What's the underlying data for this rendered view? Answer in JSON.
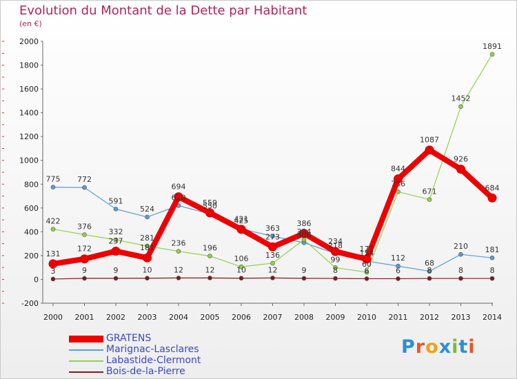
{
  "title": "Evolution du Montant de la Dette par Habitant",
  "subtitle": "(en €)",
  "logo": {
    "text": "Proxiti",
    "colors": [
      "#2b8fd6",
      "#e8552a",
      "#f0a21c",
      "#2b8fd6",
      "#7cbb2f",
      "#2b8fd6",
      "#e8552a"
    ]
  },
  "chart_data": {
    "type": "line",
    "x": [
      "2000",
      "2001",
      "2002",
      "2003",
      "2004",
      "2005",
      "2006",
      "2007",
      "2008",
      "2009",
      "2010",
      "2011",
      "2012",
      "2013",
      "2014"
    ],
    "ylim": [
      -200,
      2000
    ],
    "yticks": [
      "-200",
      "0",
      "200",
      "400",
      "600",
      "800",
      "1000",
      "1200",
      "1400",
      "1600",
      "1800",
      "2000"
    ],
    "grid": false,
    "legend_position": "bottom-left",
    "series": [
      {
        "name": "GRATENS",
        "color": "#ee0000",
        "values": [
          131,
          172,
          237,
          181,
          694,
          559,
          421,
          273,
          386,
          234,
          171,
          844,
          1087,
          926,
          684
        ],
        "labels": [
          "131",
          "172",
          "237",
          "181",
          "694",
          "559",
          "421",
          "273",
          "386",
          "234",
          "171",
          "844",
          "1087",
          "926",
          "684"
        ]
      },
      {
        "name": "Marignac-Lasclares",
        "color": "#5b9bd5",
        "values": [
          775,
          772,
          591,
          524,
          620,
          550,
          425,
          363,
          308,
          218,
          154,
          112,
          68,
          210,
          181
        ],
        "labels": [
          "775",
          "772",
          "591",
          "524",
          "620",
          "550",
          "425",
          "363",
          "308",
          "218",
          "154",
          "112",
          "68",
          "210",
          "181"
        ]
      },
      {
        "name": "Labastide-Clermont",
        "color": "#8fd24a",
        "values": [
          422,
          376,
          332,
          281,
          236,
          196,
          106,
          136,
          334,
          99,
          60,
          736,
          671,
          1452,
          1891
        ],
        "labels": [
          "422",
          "376",
          "332",
          "281",
          "236",
          "196",
          "106",
          "136",
          "334",
          "99",
          "60",
          "736",
          "671",
          "1452",
          "1891"
        ]
      },
      {
        "name": "Bois-de-la-Pierre",
        "color": "#7a1c1c",
        "values": [
          3,
          9,
          9,
          10,
          12,
          12,
          10,
          12,
          9,
          8,
          6,
          6,
          8,
          8,
          8
        ],
        "labels": [
          "3",
          "9",
          "9",
          "10",
          "12",
          "12",
          "10",
          "12",
          "9",
          "8",
          "6",
          "6",
          "8",
          "8",
          "8"
        ]
      }
    ]
  }
}
